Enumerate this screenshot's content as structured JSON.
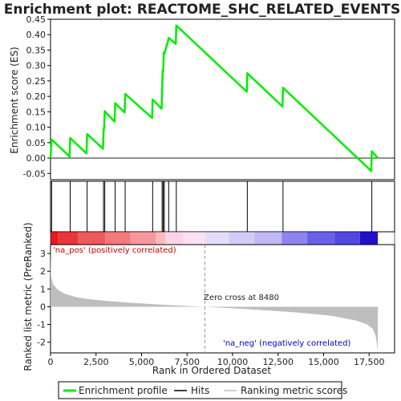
{
  "chart_data": {
    "type": "line",
    "title": "Enrichment plot: REACTOME_SHC_RELATED_EVENTS",
    "top_panel": {
      "ylabel": "Enrichment score (ES)",
      "ylim": [
        -0.07,
        0.45
      ],
      "yticks": [
        -0.05,
        0.0,
        0.05,
        0.1,
        0.15,
        0.2,
        0.25,
        0.3,
        0.35,
        0.4,
        0.45
      ],
      "ytick_labels": [
        "-0.05",
        "0.00",
        "0.05",
        "0.10",
        "0.15",
        "0.20",
        "0.25",
        "0.30",
        "0.35",
        "0.40",
        "0.45"
      ],
      "series": [
        {
          "name": "Enrichment profile",
          "color": "#00ee00",
          "x": [
            0,
            60,
            1050,
            1080,
            1980,
            2010,
            2880,
            2910,
            2950,
            2980,
            3520,
            3550,
            4070,
            4100,
            5580,
            5610,
            6100,
            6130,
            6160,
            6190,
            6220,
            6250,
            6460,
            6490,
            6880,
            6910,
            10780,
            10810,
            12740,
            12770,
            17620,
            17650,
            17980
          ],
          "y": [
            0.0,
            0.06,
            0.005,
            0.065,
            0.015,
            0.078,
            0.03,
            0.088,
            0.103,
            0.152,
            0.118,
            0.178,
            0.148,
            0.208,
            0.13,
            0.19,
            0.16,
            0.22,
            0.282,
            0.282,
            0.342,
            0.338,
            0.38,
            0.39,
            0.37,
            0.43,
            0.215,
            0.275,
            0.167,
            0.228,
            -0.042,
            0.022,
            0.0
          ]
        }
      ]
    },
    "hits": [
      60,
      1080,
      2010,
      2910,
      2980,
      3550,
      4100,
      5610,
      6130,
      6190,
      6250,
      6490,
      6910,
      10810,
      12770,
      17650
    ],
    "bottom_panel": {
      "ylabel": "Ranked list metric (PreRanked)",
      "xlabel": "Rank in Ordered Dataset",
      "ylim": [
        -2.6,
        3.5
      ],
      "yticks": [
        -2,
        -1,
        0,
        1,
        2,
        3
      ],
      "ytick_labels": [
        "-2",
        "-1",
        "0",
        "1",
        "2",
        "3"
      ],
      "xlim": [
        0,
        18900
      ],
      "xticks": [
        0,
        2500,
        5000,
        7500,
        10000,
        12500,
        15000,
        17500
      ],
      "xtick_labels": [
        "0",
        "2,500",
        "5,000",
        "7,500",
        "10,000",
        "12,500",
        "15,000",
        "17,500"
      ],
      "metric_profile": {
        "x": [
          0,
          30,
          150,
          400,
          800,
          1500,
          2500,
          4000,
          6000,
          8480,
          11000,
          13500,
          15500,
          16800,
          17400,
          17700,
          17850,
          17930,
          17980
        ],
        "y": [
          3.2,
          1.7,
          1.25,
          0.95,
          0.72,
          0.52,
          0.38,
          0.25,
          0.12,
          0.0,
          -0.15,
          -0.32,
          -0.52,
          -0.78,
          -1.0,
          -1.25,
          -1.6,
          -2.1,
          -2.45
        ]
      },
      "n_total": 17980,
      "zero_cross": 8480,
      "zero_cross_label": "Zero cross at 8480",
      "pos_label": "'na_pos' (positively correlated)",
      "neg_label": "'na_neg' (negatively correlated)",
      "pos_color": "#cc0000",
      "neg_color": "#0000cc",
      "bar_color": "#bebebe"
    },
    "legend": [
      {
        "label": "Enrichment profile",
        "color": "#00ee00"
      },
      {
        "label": "Hits",
        "color": "#000000"
      },
      {
        "label": "Ranking metric scores",
        "color": "#bebebe"
      }
    ]
  }
}
